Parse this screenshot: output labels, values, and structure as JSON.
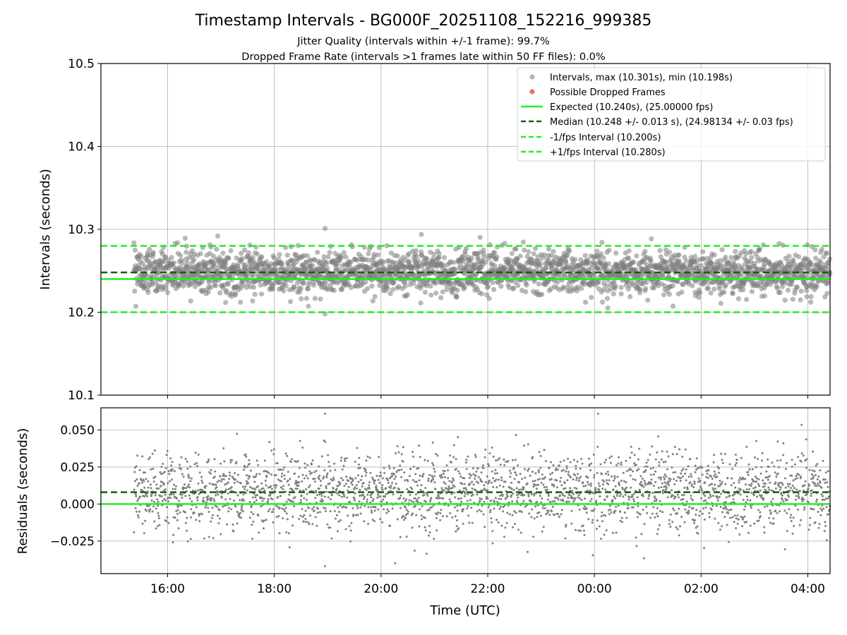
{
  "chart_data": [
    {
      "type": "scatter",
      "panel": "intervals",
      "title": "Timestamp Intervals - BG000F_20251108_152216_999385",
      "subtitle_1": "Jitter Quality (intervals within +/-1 frame): 99.7%",
      "subtitle_2": "Dropped Frame Rate (intervals >1 frames late within 50 FF files): 0.0%",
      "ylabel": "Intervals (seconds)",
      "ylim": [
        10.1,
        10.5
      ],
      "xlim": [
        "2025-11-08T14:45",
        "2025-11-09T04:25"
      ],
      "data_x_range": [
        "2025-11-08T15:22",
        "2025-11-09T04:25"
      ],
      "y_ticks": [
        "10.1",
        "10.2",
        "10.3",
        "10.4",
        "10.5"
      ],
      "y_tick_values": [
        10.1,
        10.2,
        10.3,
        10.4,
        10.5
      ],
      "grid": true,
      "legend_position": "top-right",
      "series": [
        {
          "name": "Intervals, max (10.301s), min (10.198s)",
          "kind": "points",
          "color": "#808080",
          "max": 10.301,
          "min": 10.198,
          "center": 10.248,
          "spread": 0.013
        },
        {
          "name": "Possible Dropped Frames",
          "kind": "points",
          "color": "#f06a6a",
          "count": 0
        }
      ],
      "reference_lines": [
        {
          "name": "Expected (10.240s), (25.00000 fps)",
          "value": 10.24,
          "color": "#22ee22",
          "style": "solid"
        },
        {
          "name": "Median (10.248 +/- 0.013 s), (24.98134 +/- 0.03 fps)",
          "value": 10.248,
          "color": "#0a640a",
          "style": "dashed"
        },
        {
          "name": "-1/fps Interval (10.200s)",
          "value": 10.2,
          "color": "#22ee22",
          "style": "dashed"
        },
        {
          "name": "+1/fps Interval (10.280s)",
          "value": 10.28,
          "color": "#22ee22",
          "style": "dashed"
        }
      ]
    },
    {
      "type": "scatter",
      "panel": "residuals",
      "ylabel": "Residuals (seconds)",
      "xlabel": "Time (UTC)",
      "ylim": [
        -0.047,
        0.065
      ],
      "y_ticks": [
        "−0.025",
        "0.000",
        "0.025",
        "0.050"
      ],
      "y_tick_values": [
        -0.025,
        0.0,
        0.025,
        0.05
      ],
      "x_ticks": [
        "16:00",
        "18:00",
        "20:00",
        "22:00",
        "00:00",
        "02:00",
        "04:00"
      ],
      "x_tick_values": [
        "2025-11-08T16:00",
        "2025-11-08T18:00",
        "2025-11-08T20:00",
        "2025-11-08T22:00",
        "2025-11-09T00:00",
        "2025-11-09T02:00",
        "2025-11-09T04:00"
      ],
      "grid": true,
      "series": [
        {
          "kind": "points",
          "color": "#808080",
          "max": 0.061,
          "min": -0.042,
          "center": 0.008,
          "spread": 0.013
        }
      ],
      "reference_lines": [
        {
          "value": 0.008,
          "color": "#0a640a",
          "style": "dashed"
        },
        {
          "value": 0.0,
          "color": "#22ee22",
          "style": "solid"
        }
      ]
    }
  ]
}
